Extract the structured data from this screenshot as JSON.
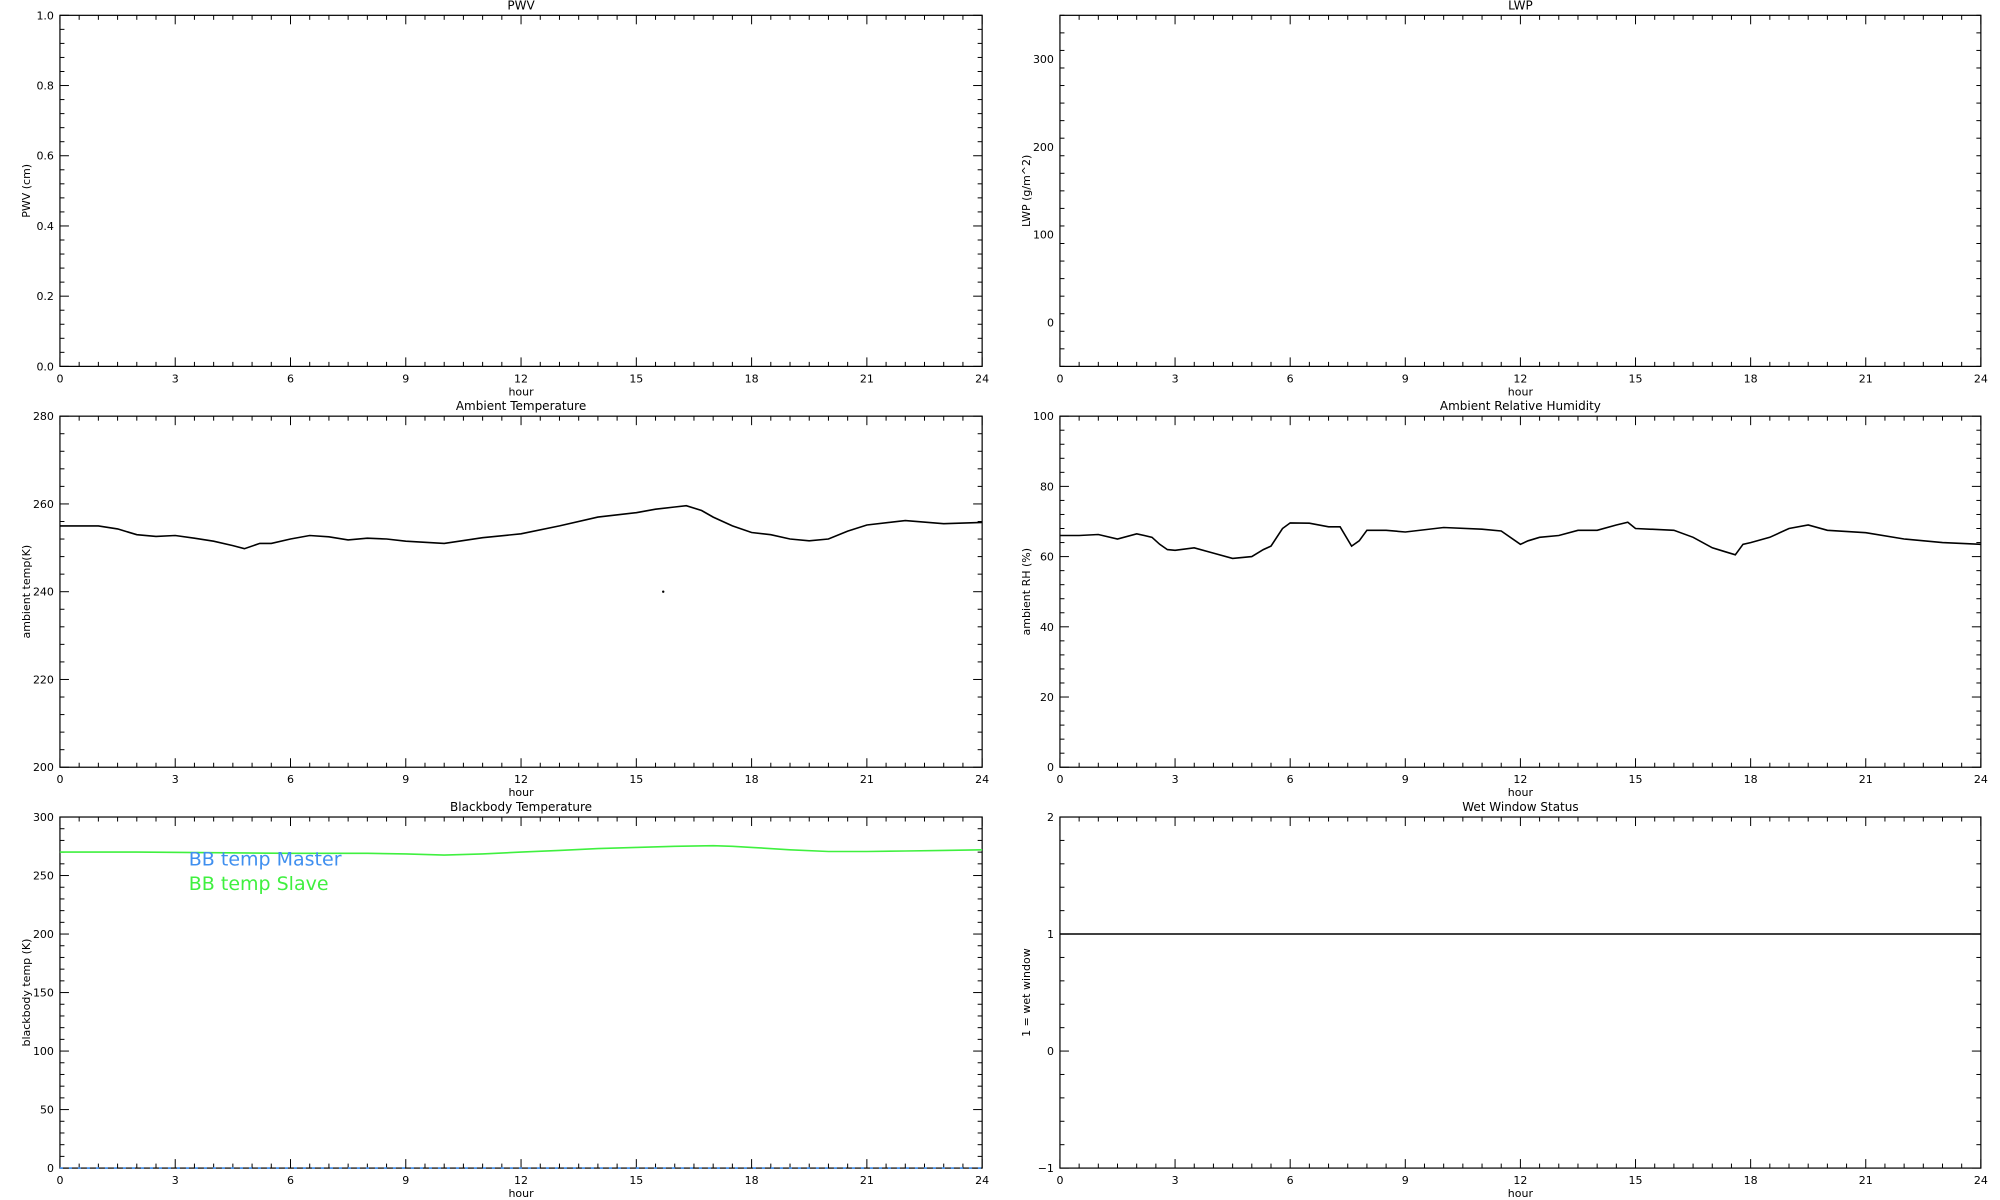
{
  "chart_data": [
    {
      "id": "pwv",
      "type": "line",
      "title": "PWV",
      "xlabel": "hour",
      "ylabel": "PWV (cm)",
      "xlim": [
        0,
        24
      ],
      "ylim": [
        0,
        1.0
      ],
      "xticks": [
        "0",
        "3",
        "6",
        "9",
        "12",
        "15",
        "18",
        "21",
        "24"
      ],
      "yticks": [
        {
          "v": 0.0,
          "label": "0.0"
        },
        {
          "v": 0.2,
          "label": "0.2"
        },
        {
          "v": 0.4,
          "label": "0.4"
        },
        {
          "v": 0.6,
          "label": "0.6"
        },
        {
          "v": 0.8,
          "label": "0.8"
        },
        {
          "v": 1.0,
          "label": "1.0"
        }
      ],
      "series": []
    },
    {
      "id": "lwp",
      "type": "line",
      "title": "LWP",
      "xlabel": "hour",
      "ylabel": "LWP (g/m^2)",
      "xlim": [
        0,
        24
      ],
      "ylim": [
        -50,
        350
      ],
      "xticks": [
        "0",
        "3",
        "6",
        "9",
        "12",
        "15",
        "18",
        "21",
        "24"
      ],
      "yticks": [
        {
          "v": 0,
          "label": "0"
        },
        {
          "v": 100,
          "label": "100"
        },
        {
          "v": 200,
          "label": "200"
        },
        {
          "v": 300,
          "label": "300"
        }
      ],
      "series": []
    },
    {
      "id": "ambient-temp",
      "type": "line",
      "title": "Ambient Temperature",
      "xlabel": "hour",
      "ylabel": "ambient temp(K)",
      "xlim": [
        0,
        24
      ],
      "ylim": [
        200,
        280
      ],
      "xticks": [
        "0",
        "3",
        "6",
        "9",
        "12",
        "15",
        "18",
        "21",
        "24"
      ],
      "yticks": [
        {
          "v": 200,
          "label": "200"
        },
        {
          "v": 220,
          "label": "220"
        },
        {
          "v": 240,
          "label": "240"
        },
        {
          "v": 260,
          "label": "260"
        },
        {
          "v": 280,
          "label": "280"
        }
      ],
      "series": [
        {
          "color": "#000000",
          "x": [
            0,
            1,
            1.5,
            2,
            2.5,
            3,
            3.5,
            4,
            4.5,
            4.8,
            5.2,
            5.5,
            6,
            6.5,
            7,
            7.5,
            8,
            8.5,
            9,
            10,
            11,
            12,
            13,
            14,
            15,
            15.5,
            16,
            16.3,
            16.7,
            17,
            17.5,
            18,
            18.5,
            19,
            19.5,
            20,
            20.5,
            21,
            22,
            23,
            24
          ],
          "y": [
            255,
            255,
            254.3,
            253,
            252.6,
            252.8,
            252.2,
            251.5,
            250.5,
            249.8,
            251,
            251,
            252,
            252.8,
            252.5,
            251.8,
            252.2,
            252,
            251.5,
            251,
            252.3,
            253.2,
            255,
            257,
            258,
            258.8,
            259.3,
            259.6,
            258.5,
            257,
            255,
            253.5,
            253,
            252,
            251.6,
            252,
            253.8,
            255.2,
            256.2,
            255.5,
            255.8
          ]
        }
      ],
      "points": [
        {
          "x": 15.7,
          "y": 240
        }
      ]
    },
    {
      "id": "ambient-rh",
      "type": "line",
      "title": "Ambient Relative Humidity",
      "xlabel": "hour",
      "ylabel": "ambient RH (%)",
      "xlim": [
        0,
        24
      ],
      "ylim": [
        0,
        100
      ],
      "xticks": [
        "0",
        "3",
        "6",
        "9",
        "12",
        "15",
        "18",
        "21",
        "24"
      ],
      "yticks": [
        {
          "v": 0,
          "label": "0"
        },
        {
          "v": 20,
          "label": "20"
        },
        {
          "v": 40,
          "label": "40"
        },
        {
          "v": 60,
          "label": "60"
        },
        {
          "v": 80,
          "label": "80"
        },
        {
          "v": 100,
          "label": "100"
        }
      ],
      "series": [
        {
          "color": "#000000",
          "x": [
            0,
            0.5,
            1,
            1.5,
            2,
            2.4,
            2.6,
            2.8,
            3,
            3.5,
            4,
            4.5,
            5,
            5.3,
            5.5,
            5.8,
            6,
            6.5,
            7,
            7.3,
            7.6,
            7.8,
            8,
            8.5,
            9,
            10,
            11,
            11.5,
            12,
            12.2,
            12.5,
            13,
            13.5,
            14,
            14.5,
            14.8,
            15,
            16,
            16.5,
            17,
            17.3,
            17.6,
            17.8,
            18,
            18.5,
            19,
            19.5,
            20,
            21,
            22,
            23,
            24
          ],
          "y": [
            66,
            66,
            66.3,
            65,
            66.5,
            65.5,
            63.5,
            62,
            61.8,
            62.5,
            61,
            59.5,
            60,
            62,
            63,
            68,
            69.6,
            69.5,
            68.5,
            68.5,
            63,
            64.5,
            67.5,
            67.5,
            67,
            68.3,
            67.8,
            67.3,
            63.5,
            64.5,
            65.5,
            66,
            67.5,
            67.5,
            69,
            69.8,
            68,
            67.5,
            65.5,
            62.5,
            61.5,
            60.5,
            63.5,
            64,
            65.5,
            68,
            69,
            67.5,
            66.8,
            65,
            64,
            63.5
          ]
        }
      ],
      "points": []
    },
    {
      "id": "blackbody-temp",
      "type": "line",
      "title": "Blackbody Temperature",
      "xlabel": "hour",
      "ylabel": "blackbody temp (K)",
      "xlim": [
        0,
        24
      ],
      "ylim": [
        0,
        300
      ],
      "xticks": [
        "0",
        "3",
        "6",
        "9",
        "12",
        "15",
        "18",
        "21",
        "24"
      ],
      "yticks": [
        {
          "v": 0,
          "label": "0"
        },
        {
          "v": 50,
          "label": "50"
        },
        {
          "v": 100,
          "label": "100"
        },
        {
          "v": 150,
          "label": "150"
        },
        {
          "v": 200,
          "label": "200"
        },
        {
          "v": 250,
          "label": "250"
        },
        {
          "v": 300,
          "label": "300"
        }
      ],
      "legend": [
        {
          "label": "BB temp Master",
          "color": "#3f8fef"
        },
        {
          "label": "BB temp Slave",
          "color": "#3ff03f"
        }
      ],
      "legend_placement": "top-left",
      "series": [
        {
          "name": "BB temp Master",
          "color": "#3f8fef",
          "dashed": true,
          "x": [
            0,
            24
          ],
          "y": [
            0,
            0
          ]
        },
        {
          "name": "BB temp Slave",
          "color": "#3ff03f",
          "x": [
            0,
            2,
            4,
            6,
            8,
            9,
            10,
            11,
            12,
            13,
            14,
            15,
            16,
            17,
            17.5,
            18,
            19,
            20,
            21,
            22,
            23,
            24
          ],
          "y": [
            270,
            270,
            269.5,
            269,
            269,
            268.5,
            267.5,
            268.5,
            270,
            271.5,
            273,
            274,
            275,
            275.5,
            275,
            274,
            272,
            270.5,
            270.5,
            271,
            271.5,
            272
          ]
        }
      ],
      "points": []
    },
    {
      "id": "wet-window",
      "type": "line",
      "title": "Wet Window Status",
      "xlabel": "hour",
      "ylabel": "1 = wet window",
      "xlim": [
        0,
        24
      ],
      "ylim": [
        -1,
        2
      ],
      "xticks": [
        "0",
        "3",
        "6",
        "9",
        "12",
        "15",
        "18",
        "21",
        "24"
      ],
      "yticks": [
        {
          "v": -1,
          "label": "−1"
        },
        {
          "v": 0,
          "label": "0"
        },
        {
          "v": 1,
          "label": "1"
        },
        {
          "v": 2,
          "label": "2"
        }
      ],
      "series": [
        {
          "color": "#000000",
          "x": [
            0,
            24
          ],
          "y": [
            1,
            1
          ]
        }
      ],
      "points": []
    }
  ]
}
